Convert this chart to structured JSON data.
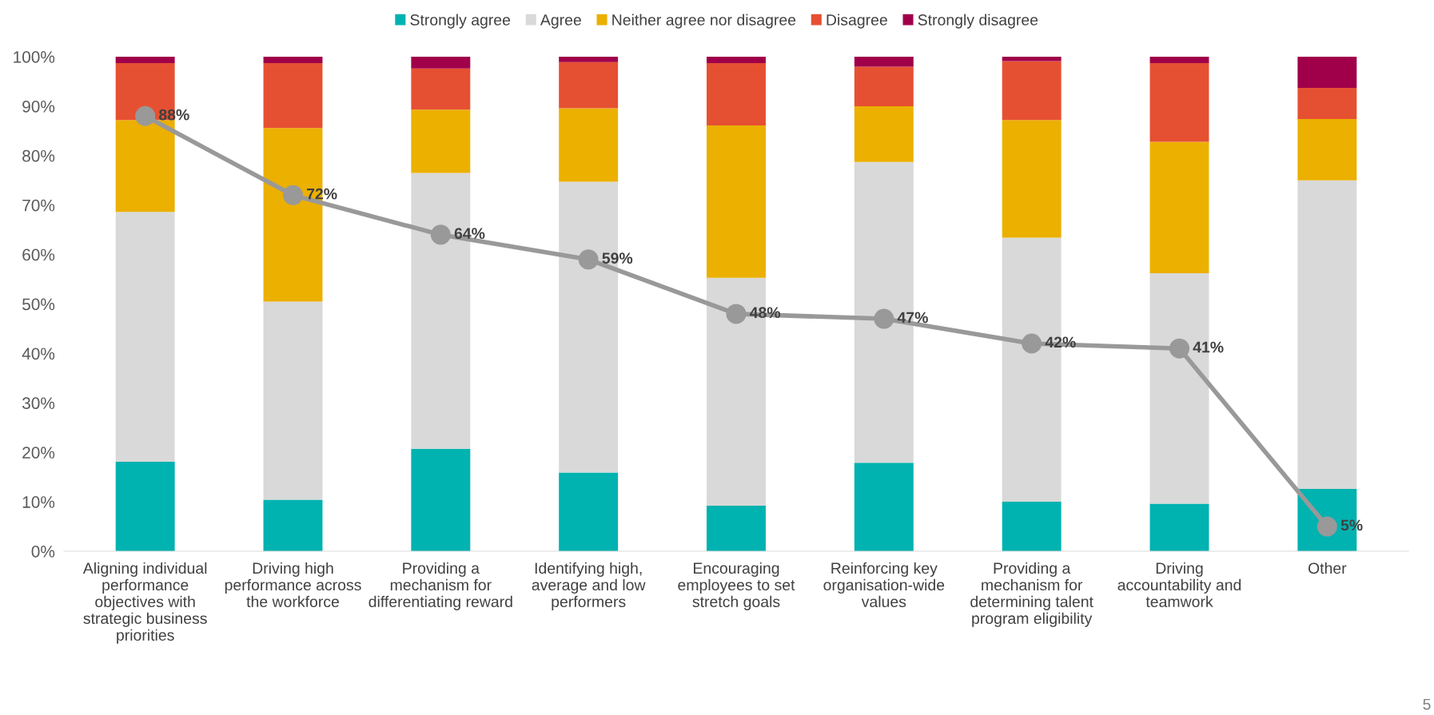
{
  "chart_data": {
    "type": "bar",
    "stacked": true,
    "categories": [
      "Aligning individual performance objectives with strategic business priorities",
      "Driving high performance across the workforce",
      "Providing a mechanism for differentiating reward",
      "Identifying high, average and low performers",
      "Encouraging employees to set stretch goals",
      "Reinforcing key organisation-wide values",
      "Providing a mechanism for determining talent program eligibility",
      "Driving accountability and teamwork",
      "Other"
    ],
    "series": [
      {
        "name": "Strongly agree",
        "color": "#00b2b0",
        "values": [
          18.1,
          10.4,
          20.7,
          15.9,
          9.2,
          17.9,
          10.0,
          9.6,
          12.6
        ]
      },
      {
        "name": "Agree",
        "color": "#d9d9d9",
        "values": [
          50.5,
          40.1,
          55.8,
          58.8,
          46.1,
          60.8,
          53.4,
          46.6,
          62.4
        ]
      },
      {
        "name": "Neither agree nor disagree",
        "color": "#ebb000",
        "values": [
          18.6,
          35.1,
          12.8,
          14.9,
          30.8,
          11.3,
          23.8,
          26.6,
          12.4
        ]
      },
      {
        "name": "Disagree",
        "color": "#e65032",
        "values": [
          11.5,
          13.1,
          8.3,
          9.3,
          12.6,
          8.0,
          11.9,
          15.9,
          6.3
        ]
      },
      {
        "name": "Strongly disagree",
        "color": "#a0004a",
        "values": [
          1.3,
          1.3,
          2.4,
          1.1,
          1.3,
          2.0,
          0.9,
          1.3,
          6.3
        ]
      },
      {
        "type": "line",
        "color": "#999999",
        "marker": "circle",
        "values": [
          88,
          72,
          64,
          59,
          48,
          47,
          42,
          41,
          5
        ],
        "value_labels": [
          "88%",
          "72%",
          "64%",
          "59%",
          "48%",
          "47%",
          "42%",
          "41%",
          "5%"
        ]
      }
    ],
    "ylim": [
      0,
      100
    ],
    "yticks": [
      {
        "value": 0,
        "label": "0%"
      },
      {
        "value": 10,
        "label": "10%"
      },
      {
        "value": 20,
        "label": "20%"
      },
      {
        "value": 30,
        "label": "30%"
      },
      {
        "value": 40,
        "label": "40%"
      },
      {
        "value": 50,
        "label": "50%"
      },
      {
        "value": 60,
        "label": "60%"
      },
      {
        "value": 70,
        "label": "70%"
      },
      {
        "value": 80,
        "label": "80%"
      },
      {
        "value": 90,
        "label": "90%"
      },
      {
        "value": 100,
        "label": "100%"
      }
    ],
    "grid": false,
    "legend": "top",
    "annotations": [
      "5"
    ]
  }
}
